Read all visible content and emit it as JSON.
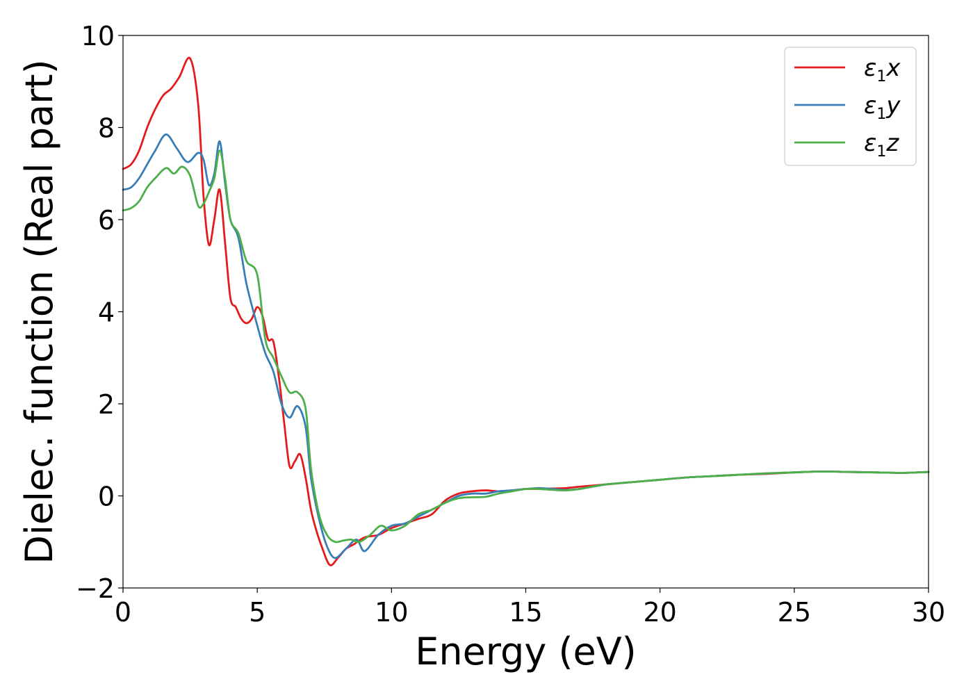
{
  "chart_data": {
    "type": "line",
    "title": "",
    "xlabel": "Energy (eV)",
    "ylabel": "Dielec. function (Real part)",
    "xlim": [
      0,
      30
    ],
    "ylim": [
      -2,
      10
    ],
    "xticks": [
      0,
      5,
      10,
      15,
      20,
      25,
      30
    ],
    "yticks": [
      -2,
      0,
      2,
      4,
      6,
      8,
      10
    ],
    "xtick_labels": [
      "0",
      "5",
      "10",
      "15",
      "20",
      "25",
      "30"
    ],
    "ytick_labels": [
      "−2",
      "0",
      "2",
      "4",
      "6",
      "8",
      "10"
    ],
    "grid": false,
    "legend_position": "top-right",
    "series": [
      {
        "name": "ε1x",
        "label_base": "ε",
        "label_sub": "1",
        "label_var": "x",
        "color": "#e41a1c",
        "x": [
          0,
          0.3,
          0.6,
          0.9,
          1.2,
          1.5,
          1.8,
          2.1,
          2.5,
          2.8,
          3.0,
          3.2,
          3.4,
          3.6,
          3.8,
          4.0,
          4.2,
          4.4,
          4.6,
          4.8,
          5.0,
          5.2,
          5.4,
          5.6,
          5.8,
          6.0,
          6.2,
          6.4,
          6.6,
          6.8,
          7.0,
          7.2,
          7.4,
          7.7,
          8.0,
          8.3,
          8.6,
          9.0,
          9.5,
          10.0,
          10.5,
          11.0,
          11.5,
          12.0,
          12.5,
          13.0,
          13.5,
          14.0,
          14.5,
          15.0,
          15.5,
          16.0,
          16.5,
          17.0,
          18.0,
          19.0,
          20.0,
          21.0,
          22.0,
          23.0,
          24.0,
          25.0,
          26.0,
          27.0,
          28.0,
          29.0,
          30.0
        ],
        "y": [
          7.1,
          7.2,
          7.5,
          8.0,
          8.4,
          8.7,
          8.85,
          9.1,
          9.5,
          8.5,
          6.5,
          5.45,
          6.0,
          6.65,
          5.5,
          4.3,
          4.1,
          3.85,
          3.75,
          3.85,
          4.1,
          3.9,
          3.4,
          3.35,
          2.6,
          1.6,
          0.65,
          0.75,
          0.9,
          0.4,
          -0.3,
          -0.75,
          -1.1,
          -1.5,
          -1.35,
          -1.15,
          -1.05,
          -0.9,
          -0.85,
          -0.7,
          -0.6,
          -0.5,
          -0.4,
          -0.1,
          0.05,
          0.1,
          0.12,
          0.1,
          0.12,
          0.15,
          0.15,
          0.16,
          0.17,
          0.2,
          0.25,
          0.3,
          0.35,
          0.4,
          0.43,
          0.46,
          0.48,
          0.51,
          0.53,
          0.52,
          0.51,
          0.5,
          0.52
        ]
      },
      {
        "name": "ε1y",
        "label_base": "ε",
        "label_sub": "1",
        "label_var": "y",
        "color": "#377eb8",
        "x": [
          0,
          0.3,
          0.6,
          0.9,
          1.2,
          1.6,
          2.0,
          2.4,
          2.8,
          3.0,
          3.2,
          3.4,
          3.6,
          3.8,
          4.0,
          4.3,
          4.6,
          5.0,
          5.3,
          5.6,
          5.9,
          6.2,
          6.5,
          6.8,
          7.0,
          7.3,
          7.6,
          7.9,
          8.3,
          8.7,
          9.0,
          9.5,
          10.0,
          10.5,
          11.0,
          11.5,
          12.0,
          12.5,
          13.0,
          13.5,
          14.0,
          14.5,
          15.0,
          15.5,
          16.0,
          16.5,
          17.0,
          18.0,
          19.0,
          20.0,
          21.0,
          22.0,
          23.0,
          24.0,
          25.0,
          26.0,
          27.0,
          28.0,
          29.0,
          30.0
        ],
        "y": [
          6.65,
          6.7,
          6.9,
          7.2,
          7.5,
          7.85,
          7.55,
          7.25,
          7.45,
          7.3,
          6.75,
          7.0,
          7.7,
          6.8,
          6.0,
          5.6,
          4.6,
          3.7,
          3.1,
          2.7,
          2.0,
          1.7,
          1.95,
          1.5,
          0.4,
          -0.5,
          -1.1,
          -1.35,
          -1.15,
          -0.95,
          -1.2,
          -0.85,
          -0.65,
          -0.6,
          -0.45,
          -0.3,
          -0.15,
          0.0,
          0.05,
          0.05,
          0.1,
          0.12,
          0.15,
          0.17,
          0.15,
          0.13,
          0.15,
          0.25,
          0.3,
          0.35,
          0.4,
          0.43,
          0.46,
          0.49,
          0.51,
          0.53,
          0.52,
          0.51,
          0.5,
          0.52
        ]
      },
      {
        "name": "ε1z",
        "label_base": "ε",
        "label_sub": "1",
        "label_var": "z",
        "color": "#4daf4a",
        "x": [
          0,
          0.3,
          0.6,
          0.9,
          1.2,
          1.6,
          1.9,
          2.2,
          2.5,
          2.8,
          3.0,
          3.2,
          3.4,
          3.6,
          3.8,
          4.0,
          4.3,
          4.6,
          5.0,
          5.3,
          5.6,
          5.9,
          6.2,
          6.5,
          6.8,
          7.0,
          7.3,
          7.6,
          7.9,
          8.2,
          8.5,
          8.8,
          9.2,
          9.6,
          10.0,
          10.5,
          11.0,
          11.5,
          12.0,
          12.5,
          13.0,
          13.5,
          14.0,
          14.5,
          15.0,
          15.5,
          16.0,
          16.5,
          17.0,
          18.0,
          19.0,
          20.0,
          21.0,
          22.0,
          23.0,
          24.0,
          25.0,
          26.0,
          27.0,
          28.0,
          29.0,
          30.0
        ],
        "y": [
          6.2,
          6.25,
          6.4,
          6.7,
          6.9,
          7.12,
          7.0,
          7.15,
          6.95,
          6.3,
          6.35,
          6.6,
          6.9,
          7.5,
          6.9,
          6.0,
          5.7,
          5.1,
          4.8,
          3.4,
          3.0,
          2.6,
          2.25,
          2.25,
          1.9,
          0.6,
          -0.4,
          -0.85,
          -1.0,
          -0.97,
          -0.95,
          -1.0,
          -0.85,
          -0.65,
          -0.75,
          -0.65,
          -0.4,
          -0.3,
          -0.15,
          -0.05,
          -0.03,
          -0.02,
          0.05,
          0.1,
          0.15,
          0.15,
          0.13,
          0.12,
          0.15,
          0.25,
          0.3,
          0.35,
          0.4,
          0.43,
          0.46,
          0.49,
          0.51,
          0.53,
          0.52,
          0.51,
          0.5,
          0.52
        ]
      }
    ]
  }
}
